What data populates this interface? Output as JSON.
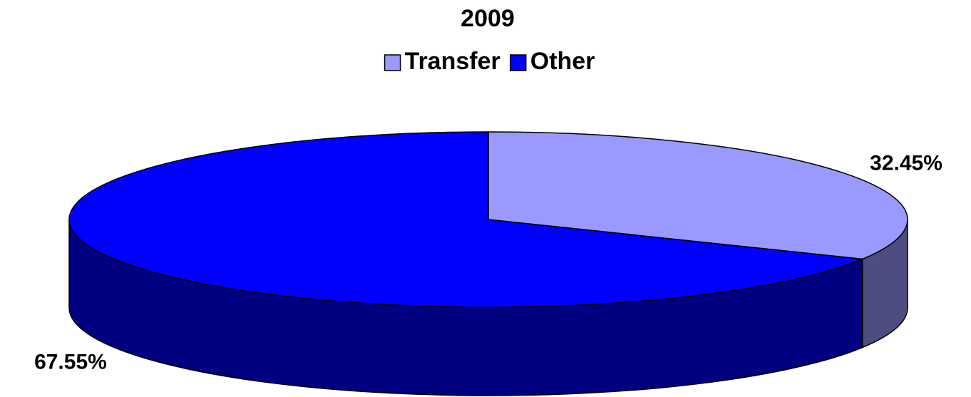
{
  "chart_data": {
    "type": "pie",
    "title": "2009",
    "categories": [
      "Transfer",
      "Other"
    ],
    "values": [
      32.45,
      67.55
    ],
    "value_labels": [
      "32.45%",
      "67.55%"
    ],
    "colors": [
      "#9999ff",
      "#0000ff"
    ],
    "side_colors": [
      "#4d4d80",
      "#000080"
    ],
    "legend": "top"
  }
}
